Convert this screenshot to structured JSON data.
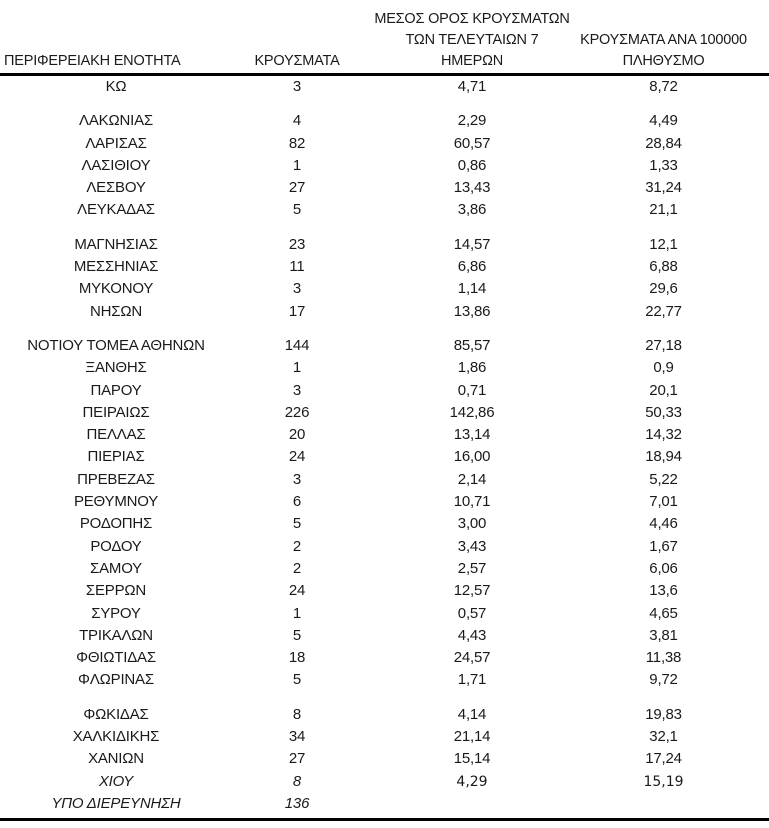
{
  "colors": {
    "background": "#ffffff",
    "text": "#1a1a1a",
    "rule": "#000000"
  },
  "table": {
    "columns": [
      {
        "id": "region",
        "label": "ΠΕΡΙΦΕΡΕΙΑΚΗ ΕΝΟΤΗΤΑ"
      },
      {
        "id": "cases",
        "label": "ΚΡΟΥΣΜΑΤΑ"
      },
      {
        "id": "avg7",
        "label": "ΜΕΣΟΣ ΟΡΟΣ ΚΡΟΥΣΜΑΤΩΝ\nΤΩΝ ΤΕΛΕΥΤΑΙΩΝ 7\nΗΜΕΡΩΝ"
      },
      {
        "id": "per100k",
        "label": "ΚΡΟΥΣΜΑΤΑ ΑΝΑ 100000\nΠΛΗΘΥΣΜΟ"
      }
    ],
    "rows": [
      {
        "region": "ΚΩ",
        "cases": "3",
        "avg7": "4,71",
        "per100k": "8,72"
      },
      {
        "region": "ΛΑΚΩΝΙΑΣ",
        "cases": "4",
        "avg7": "2,29",
        "per100k": "4,49",
        "gap_before": true
      },
      {
        "region": "ΛΑΡΙΣΑΣ",
        "cases": "82",
        "avg7": "60,57",
        "per100k": "28,84"
      },
      {
        "region": "ΛΑΣΙΘΙΟΥ",
        "cases": "1",
        "avg7": "0,86",
        "per100k": "1,33"
      },
      {
        "region": "ΛΕΣΒΟΥ",
        "cases": "27",
        "avg7": "13,43",
        "per100k": "31,24"
      },
      {
        "region": "ΛΕΥΚΑΔΑΣ",
        "cases": "5",
        "avg7": "3,86",
        "per100k": "21,1"
      },
      {
        "region": "ΜΑΓΝΗΣΙΑΣ",
        "cases": "23",
        "avg7": "14,57",
        "per100k": "12,1",
        "gap_before": true
      },
      {
        "region": "ΜΕΣΣΗΝΙΑΣ",
        "cases": "11",
        "avg7": "6,86",
        "per100k": "6,88"
      },
      {
        "region": "ΜΥΚΟΝΟΥ",
        "cases": "3",
        "avg7": "1,14",
        "per100k": "29,6"
      },
      {
        "region": "ΝΗΣΩΝ",
        "cases": "17",
        "avg7": "13,86",
        "per100k": "22,77"
      },
      {
        "region": "ΝΟΤΙΟΥ ΤΟΜΕΑ ΑΘΗΝΩΝ",
        "cases": "144",
        "avg7": "85,57",
        "per100k": "27,18",
        "gap_before": true
      },
      {
        "region": "ΞΑΝΘΗΣ",
        "cases": "1",
        "avg7": "1,86",
        "per100k": "0,9"
      },
      {
        "region": "ΠΑΡΟΥ",
        "cases": "3",
        "avg7": "0,71",
        "per100k": "20,1"
      },
      {
        "region": "ΠΕΙΡΑΙΩΣ",
        "cases": "226",
        "avg7": "142,86",
        "per100k": "50,33"
      },
      {
        "region": "ΠΕΛΛΑΣ",
        "cases": "20",
        "avg7": "13,14",
        "per100k": "14,32"
      },
      {
        "region": "ΠΙΕΡΙΑΣ",
        "cases": "24",
        "avg7": "16,00",
        "per100k": "18,94"
      },
      {
        "region": "ΠΡΕΒΕΖΑΣ",
        "cases": "3",
        "avg7": "2,14",
        "per100k": "5,22"
      },
      {
        "region": "ΡΕΘΥΜΝΟΥ",
        "cases": "6",
        "avg7": "10,71",
        "per100k": "7,01"
      },
      {
        "region": "ΡΟΔΟΠΗΣ",
        "cases": "5",
        "avg7": "3,00",
        "per100k": "4,46"
      },
      {
        "region": "ΡΟΔΟΥ",
        "cases": "2",
        "avg7": "3,43",
        "per100k": "1,67"
      },
      {
        "region": "ΣΑΜΟΥ",
        "cases": "2",
        "avg7": "2,57",
        "per100k": "6,06"
      },
      {
        "region": "ΣΕΡΡΩΝ",
        "cases": "24",
        "avg7": "12,57",
        "per100k": "13,6"
      },
      {
        "region": "ΣΥΡΟΥ",
        "cases": "1",
        "avg7": "0,57",
        "per100k": "4,65"
      },
      {
        "region": "ΤΡΙΚΑΛΩΝ",
        "cases": "5",
        "avg7": "4,43",
        "per100k": "3,81"
      },
      {
        "region": "ΦΘΙΩΤΙΔΑΣ",
        "cases": "18",
        "avg7": "24,57",
        "per100k": "11,38"
      },
      {
        "region": "ΦΛΩΡΙΝΑΣ",
        "cases": "5",
        "avg7": "1,71",
        "per100k": "9,72"
      },
      {
        "region": "ΦΩΚΙΔΑΣ",
        "cases": "8",
        "avg7": "4,14",
        "per100k": "19,83",
        "gap_before": true
      },
      {
        "region": "ΧΑΛΚΙΔΙΚΗΣ",
        "cases": "34",
        "avg7": "21,14",
        "per100k": "32,1"
      },
      {
        "region": "ΧΑΝΙΩΝ",
        "cases": "27",
        "avg7": "15,14",
        "per100k": "17,24"
      },
      {
        "region": "ΧΙΟΥ",
        "cases": "8",
        "avg7": "4,29",
        "per100k": "15,19",
        "italic": true,
        "alt_numeric_font": true
      },
      {
        "region": "ΥΠΟ ΔΙΕΡΕΥΝΗΣΗ",
        "cases": "136",
        "avg7": "",
        "per100k": "",
        "italic": true
      }
    ]
  }
}
